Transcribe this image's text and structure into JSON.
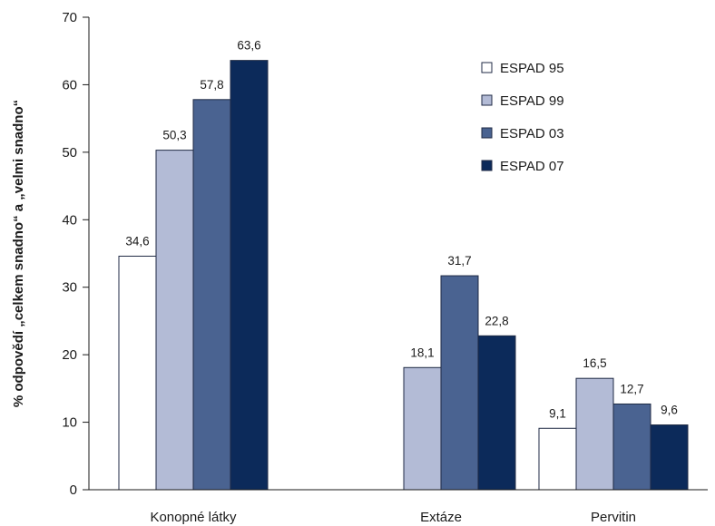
{
  "chart_data": {
    "type": "bar",
    "title": "",
    "xlabel": "",
    "ylabel": "% odpovědí „celkem snadno“ a „velmi snadno“",
    "ylim": [
      0,
      70
    ],
    "yticks": [
      0,
      10,
      20,
      30,
      40,
      50,
      60,
      70
    ],
    "categories": [
      "Konopné látky",
      "Extáze",
      "Pervitin"
    ],
    "series": [
      {
        "name": "ESPAD 95",
        "color": "#ffffff",
        "values": [
          34.6,
          null,
          9.1
        ],
        "labels": [
          "34,6",
          "",
          "9,1"
        ]
      },
      {
        "name": "ESPAD 99",
        "color": "#b3bbd6",
        "values": [
          50.3,
          18.1,
          16.5
        ],
        "labels": [
          "50,3",
          "18,1",
          "16,5"
        ]
      },
      {
        "name": "ESPAD 03",
        "color": "#4a6391",
        "values": [
          57.8,
          31.7,
          12.7
        ],
        "labels": [
          "57,8",
          "31,7",
          "12,7"
        ]
      },
      {
        "name": "ESPAD 07",
        "color": "#0c2a5a",
        "values": [
          63.6,
          22.8,
          9.6
        ],
        "labels": [
          "63,6",
          "22,8",
          "9,6"
        ]
      }
    ],
    "legend": "top-right",
    "grid": false
  }
}
